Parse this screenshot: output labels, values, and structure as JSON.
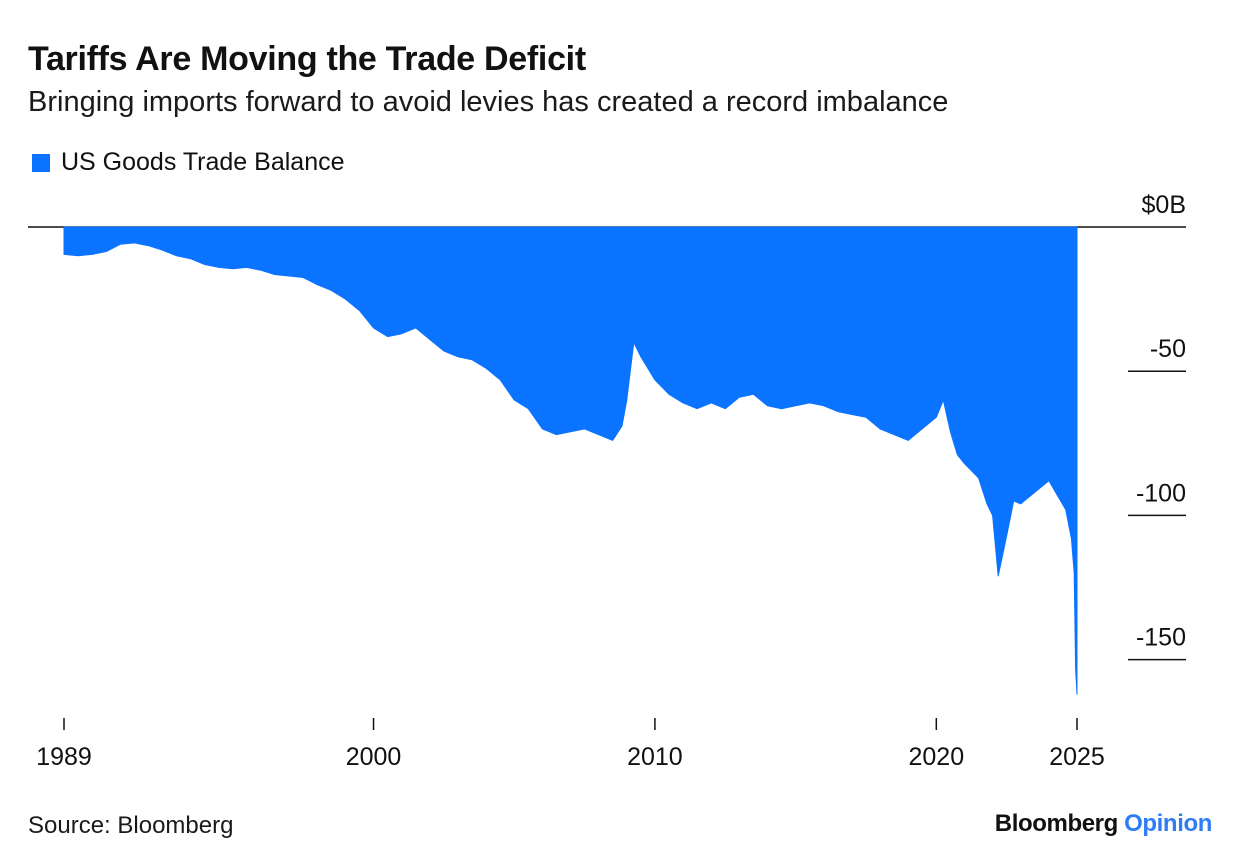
{
  "header": {
    "title": "Tariffs Are Moving the Trade Deficit",
    "subtitle": "Bringing imports forward to avoid levies has created a record imbalance"
  },
  "footer": {
    "source": "Source: Bloomberg",
    "brand_primary": "Bloomberg",
    "brand_secondary": "Opinion"
  },
  "colors": {
    "series": "#0a73ff",
    "brand_accent": "#2f7cf6",
    "axis": "#111111"
  },
  "chart_data": {
    "type": "area",
    "title": "Tariffs Are Moving the Trade Deficit",
    "subtitle": "Bringing imports forward to avoid levies has created a record imbalance",
    "xlabel": "",
    "ylabel": "",
    "y_unit": "$B",
    "ylim": [
      -162,
      0
    ],
    "y_axis_side": "right",
    "grid": false,
    "legend_position": "top-left",
    "y_ticks": [
      {
        "value": 0,
        "label": "$0B"
      },
      {
        "value": -50,
        "label": "-50"
      },
      {
        "value": -100,
        "label": "-100"
      },
      {
        "value": -150,
        "label": "-150"
      }
    ],
    "x_ticks": [
      {
        "value": 1989,
        "label": "1989"
      },
      {
        "value": 2000,
        "label": "2000"
      },
      {
        "value": 2010,
        "label": "2010"
      },
      {
        "value": 2020,
        "label": "2020"
      },
      {
        "value": 2025,
        "label": "2025"
      }
    ],
    "series": [
      {
        "name": "US Goods Trade Balance",
        "x": [
          1989.0,
          1989.5,
          1990.0,
          1990.5,
          1991.0,
          1991.5,
          1992.0,
          1992.5,
          1993.0,
          1993.5,
          1994.0,
          1994.5,
          1995.0,
          1995.5,
          1996.0,
          1996.5,
          1997.0,
          1997.5,
          1998.0,
          1998.5,
          1999.0,
          1999.5,
          2000.0,
          2000.5,
          2001.0,
          2001.5,
          2002.0,
          2002.5,
          2003.0,
          2003.5,
          2004.0,
          2004.5,
          2005.0,
          2005.5,
          2006.0,
          2006.5,
          2007.0,
          2007.5,
          2008.0,
          2008.5,
          2008.83,
          2009.0,
          2009.25,
          2009.5,
          2010.0,
          2010.5,
          2011.0,
          2011.5,
          2012.0,
          2012.5,
          2013.0,
          2013.5,
          2014.0,
          2014.5,
          2015.0,
          2015.5,
          2016.0,
          2016.5,
          2017.0,
          2017.5,
          2018.0,
          2018.5,
          2019.0,
          2019.5,
          2020.0,
          2020.25,
          2020.5,
          2020.75,
          2021.0,
          2021.5,
          2021.8,
          2022.0,
          2022.2,
          2022.5,
          2022.75,
          2023.0,
          2023.5,
          2024.0,
          2024.3,
          2024.6,
          2024.8,
          2024.9,
          2024.95,
          2025.0
        ],
        "values": [
          -9.5,
          -10,
          -9.5,
          -8.5,
          -6,
          -5.5,
          -6.5,
          -8,
          -10,
          -11,
          -13,
          -14,
          -14.5,
          -14,
          -15,
          -16.5,
          -17,
          -17.5,
          -20,
          -22,
          -25,
          -29,
          -35,
          -38,
          -37,
          -35,
          -39,
          -43,
          -45,
          -46,
          -49,
          -53,
          -60,
          -63,
          -70,
          -72,
          -71,
          -70,
          -72,
          -74,
          -69,
          -60,
          -40,
          -45,
          -53,
          -58,
          -61,
          -63,
          -61,
          -63,
          -59,
          -58,
          -62,
          -63,
          -62,
          -61,
          -62,
          -64,
          -65,
          -66,
          -70,
          -72,
          -74,
          -70,
          -66,
          -60,
          -71,
          -79,
          -82,
          -87,
          -96,
          -100,
          -121,
          -107,
          -95,
          -96,
          -92,
          -88,
          -93,
          -98,
          -108,
          -120,
          -153,
          -162
        ]
      }
    ]
  }
}
